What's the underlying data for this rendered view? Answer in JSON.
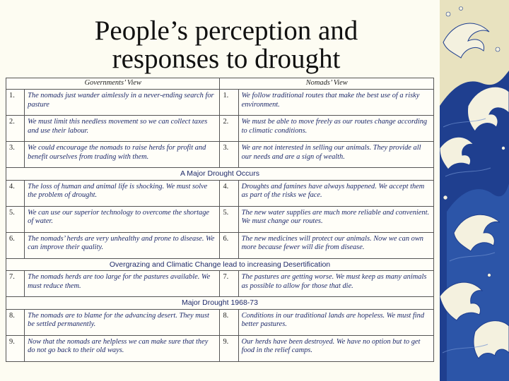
{
  "title": "People’s perception and responses to drought",
  "table": {
    "header": {
      "gov": "Governments’ View",
      "nomad": "Nomads’ View"
    },
    "sections": [
      {
        "label": "",
        "rows": [
          {
            "n1": "1.",
            "g": "The nomads just wander aimlessly in a never-ending search for pasture",
            "n2": "1.",
            "m": "We follow traditional routes that make the best use of a risky environment."
          },
          {
            "n1": "2.",
            "g": "We must limit this needless movement so we can collect taxes and use their labour.",
            "n2": "2.",
            "m": "We must be able to move freely as our routes change according to climatic conditions."
          },
          {
            "n1": "3.",
            "g": "We could encourage the nomads to raise herds for profit and benefit ourselves from trading with them.",
            "n2": "3.",
            "m": "We are not interested in selling our animals. They provide all our needs and are a sign of wealth."
          }
        ]
      },
      {
        "label": "A Major Drought Occurs",
        "rows": [
          {
            "n1": "4.",
            "g": "The loss of human and animal life is shocking. We must solve the problem of drought.",
            "n2": "4.",
            "m": "Droughts and famines have always happened. We accept them as part of the risks we face."
          },
          {
            "n1": "5.",
            "g": "We can use our superior technology to overcome the shortage of water.",
            "n2": "5.",
            "m": "The new water supplies are much more reliable and convenient. We must change our routes."
          },
          {
            "n1": "6.",
            "g": "The nomads’ herds are very unhealthy and prone to disease. We can improve their quality.",
            "n2": "6.",
            "m": "The new medicines will protect our animals. Now we can own more because fewer will die from disease."
          }
        ]
      },
      {
        "label": "Overgrazing and Climatic Change lead to increasing Desertification",
        "rows": [
          {
            "n1": "7.",
            "g": "The nomads herds are too large for the pastures available. We must reduce them.",
            "n2": "7.",
            "m": "The pastures are getting worse. We must keep as many animals as possible to allow for those that die."
          }
        ]
      },
      {
        "label": "Major Drought 1968-73",
        "rows": [
          {
            "n1": "8.",
            "g": "The nomads are to blame for the advancing desert. They must be settled permanently.",
            "n2": "8.",
            "m": "Conditions in our traditional lands are hopeless. We must find better pastures."
          },
          {
            "n1": "9.",
            "g": "Now that the nomads are helpless we can make sure that they do not go back to their old ways.",
            "n2": "9.",
            "m": "Our herds have been destroyed. We have no option but to get food in the relief camps."
          }
        ]
      }
    ]
  },
  "art": {
    "name": "wave-artwork",
    "colors": {
      "deep": "#1f3f8f",
      "mid": "#3a66b8",
      "foam": "#f4f1df",
      "sand": "#e8e2bf"
    }
  }
}
